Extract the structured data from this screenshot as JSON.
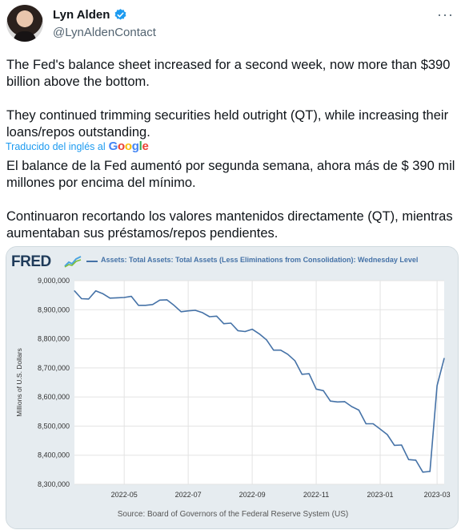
{
  "author": {
    "name": "Lyn Alden",
    "handle": "@LynAldenContact",
    "more_label": "···"
  },
  "tweet": {
    "paragraphs": [
      "The Fed's balance sheet increased for a second week, now more than $390 billion above the bottom.",
      "They continued trimming securities held outright (QT), while increasing their loans/repos outstanding."
    ]
  },
  "translation_label": "Traducido del inglés al",
  "translation_provider": "Google",
  "translation": {
    "paragraphs": [
      "El balance de la Fed aumentó por segunda semana, ahora más de $ 390 mil millones por encima del mínimo.",
      "Continuaron recortando los valores mantenidos directamente (QT), mientras aumentaban sus préstamos/repos pendientes."
    ]
  },
  "card": {
    "logo": "FRED",
    "source": "Source: Board of Governors of the Federal Reserve System (US)"
  },
  "colors": {
    "accent": "#1d9bf0",
    "series": "#4572a7"
  },
  "chart_data": {
    "type": "line",
    "title": "Assets: Total Assets: Total Assets (Less Eliminations from Consolidation): Wednesday Level",
    "ylabel": "Millions of U.S. Dollars",
    "xlabel": "",
    "ylim": [
      8300000,
      9000000
    ],
    "y_ticks": [
      "9,000,000",
      "8,900,000",
      "8,800,000",
      "8,700,000",
      "8,600,000",
      "8,500,000",
      "8,400,000",
      "8,300,000"
    ],
    "y_tick_values": [
      9000000,
      8900000,
      8800000,
      8700000,
      8600000,
      8500000,
      8400000,
      8300000
    ],
    "x_ticks": [
      "2022-05",
      "2022-07",
      "2022-09",
      "2022-11",
      "2023-01",
      "2023-03"
    ],
    "x_tick_weeks": [
      7,
      16,
      25,
      34,
      43,
      51
    ],
    "grid": true,
    "series": [
      {
        "values": [
          8965000,
          8938000,
          8937000,
          8965000,
          8955000,
          8940000,
          8941000,
          8942000,
          8946000,
          8915000,
          8915000,
          8918000,
          8933000,
          8934000,
          8915000,
          8893000,
          8896000,
          8898000,
          8890000,
          8876000,
          8878000,
          8852000,
          8854000,
          8828000,
          8825000,
          8833000,
          8817000,
          8797000,
          8761000,
          8761000,
          8747000,
          8725000,
          8678000,
          8680000,
          8627000,
          8622000,
          8586000,
          8583000,
          8584000,
          8567000,
          8555000,
          8508000,
          8508000,
          8490000,
          8471000,
          8434000,
          8435000,
          8385000,
          8383000,
          8342000,
          8344000,
          8639000,
          8733000
        ]
      }
    ]
  }
}
